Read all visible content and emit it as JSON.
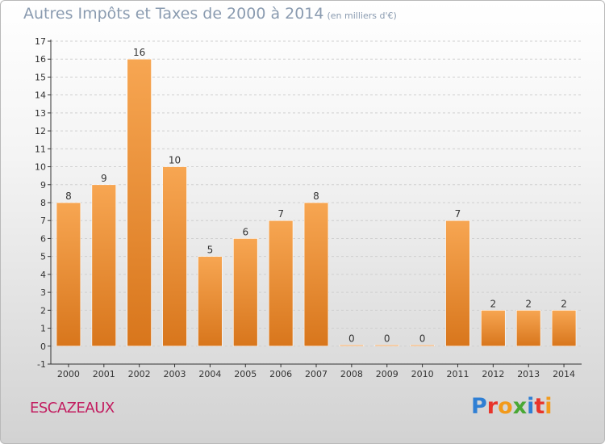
{
  "title": "Autres Impôts et Taxes de 2000 à 2014",
  "title_unit": "(en milliers d'€)",
  "place_name": "ESCAZEAUX",
  "logo": {
    "letters": [
      "P",
      "r",
      "o",
      "x",
      "i",
      "t",
      "i"
    ],
    "colors": [
      "#2f7fd4",
      "#e8352b",
      "#f29a1b",
      "#49a834",
      "#2f7fd4",
      "#e8352b",
      "#f29a1b"
    ]
  },
  "colors": {
    "bar_light": "#f7a652",
    "bar_dark": "#d8761c",
    "axis": "#333333",
    "grid": "#cfcfcf",
    "label": "#333333"
  },
  "chart_data": {
    "type": "bar",
    "categories": [
      "2000",
      "2001",
      "2002",
      "2003",
      "2004",
      "2005",
      "2006",
      "2007",
      "2008",
      "2009",
      "2010",
      "2011",
      "2012",
      "2013",
      "2014"
    ],
    "values": [
      8,
      9,
      16,
      10,
      5,
      6,
      7,
      8,
      0,
      0,
      0,
      7,
      2,
      2,
      2
    ],
    "data_labels": [
      "8",
      "9",
      "16",
      "10",
      "5",
      "6",
      "7",
      "8",
      "0",
      "0",
      "0",
      "7",
      "2",
      "2",
      "2"
    ],
    "y_ticks": [
      "-1",
      "0",
      "1",
      "2",
      "3",
      "4",
      "5",
      "6",
      "7",
      "8",
      "9",
      "10",
      "11",
      "12",
      "13",
      "14",
      "15",
      "16",
      "17"
    ],
    "ylim": [
      -1,
      17
    ],
    "grid": true
  }
}
